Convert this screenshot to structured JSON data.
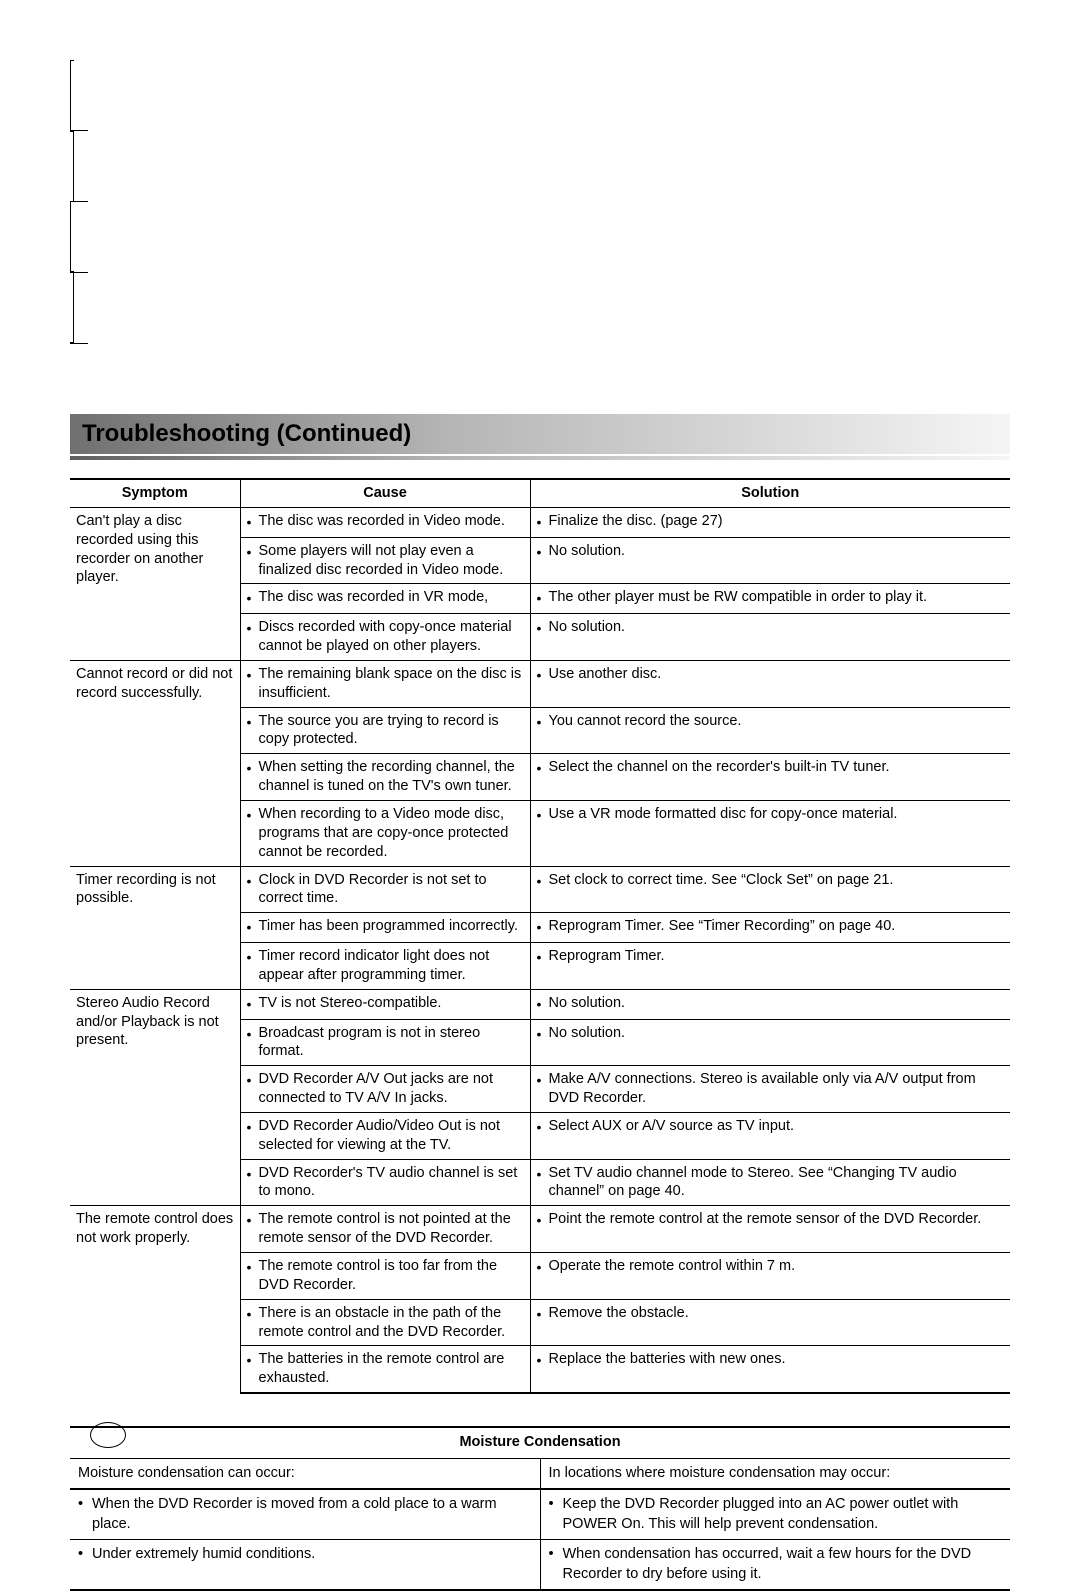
{
  "title": "Troubleshooting (Continued)",
  "headers": {
    "symptom": "Symptom",
    "cause": "Cause",
    "solution": "Solution"
  },
  "groups": [
    {
      "symptom": "Can't play a disc recorded using this recorder on another player.",
      "rows": [
        {
          "cause": "The disc was recorded in Video mode.",
          "solution": "Finalize the disc. (page 27)"
        },
        {
          "cause": "Some players will not play even a finalized disc recorded in Video mode.",
          "solution": "No solution."
        },
        {
          "cause": "The disc was recorded in VR mode,",
          "solution": "The other player must be RW compatible in order to play it."
        },
        {
          "cause": "Discs recorded with copy-once material cannot be played on other players.",
          "solution": "No solution."
        }
      ]
    },
    {
      "symptom": "Cannot record or did not record successfully.",
      "rows": [
        {
          "cause": "The remaining blank space on the disc is insufficient.",
          "solution": "Use another disc."
        },
        {
          "cause": "The source you are trying to record is copy protected.",
          "solution": "You cannot record the source."
        },
        {
          "cause": "When setting the recording channel, the channel is tuned on the TV's own tuner.",
          "solution": "Select the channel on the recorder's built-in TV tuner."
        },
        {
          "cause": "When recording to a Video mode disc, programs that are copy-once protected cannot be recorded.",
          "solution": "Use a VR mode formatted disc for copy-once material."
        }
      ]
    },
    {
      "symptom": "Timer recording is not possible.",
      "rows": [
        {
          "cause": "Clock in DVD Recorder is not set to correct time.",
          "solution": "Set clock to correct time. See “Clock Set” on page 21."
        },
        {
          "cause": "Timer has been programmed incorrectly.",
          "solution": "Reprogram Timer. See “Timer Recording” on page 40."
        },
        {
          "cause": "Timer record indicator light does not appear after programming timer.",
          "solution": "Reprogram Timer."
        }
      ]
    },
    {
      "symptom": "Stereo Audio Record and/or Playback is not present.",
      "rows": [
        {
          "cause": "TV is not Stereo-compatible.",
          "solution": "No solution."
        },
        {
          "cause": "Broadcast program is not in stereo format.",
          "solution": "No solution."
        },
        {
          "cause": "DVD Recorder A/V Out jacks are not connected to TV A/V In jacks.",
          "solution": "Make A/V connections. Stereo is available only via A/V output from DVD Recorder."
        },
        {
          "cause": "DVD Recorder Audio/Video Out is not selected for viewing at the TV.",
          "solution": "Select AUX or A/V source as TV input."
        },
        {
          "cause": "DVD Recorder's TV audio channel is set to mono.",
          "solution": "Set TV audio channel mode to Stereo. See “Changing TV audio channel” on page 40."
        }
      ]
    },
    {
      "symptom": "The remote control does not work properly.",
      "rows": [
        {
          "cause": "The remote control is not pointed at the remote sensor of the DVD Recorder.",
          "solution": "Point the remote control at the remote sensor of the DVD Recorder."
        },
        {
          "cause": "The remote control is too far from the DVD Recorder.",
          "solution": "Operate the remote control within 7 m."
        },
        {
          "cause": "There is an obstacle in the path of the remote control and the DVD Recorder.",
          "solution": "Remove the obstacle."
        },
        {
          "cause": "The batteries in the remote control are exhausted.",
          "solution": "Replace the batteries with new ones."
        }
      ]
    }
  ],
  "moisture": {
    "header": "Moisture Condensation",
    "left_intro": "Moisture condensation can occur:",
    "right_intro": "In locations where moisture condensation may occur:",
    "rows": [
      {
        "left": "When the DVD Recorder is moved from a cold place to a warm place.",
        "right": "Keep the DVD Recorder plugged into an AC power outlet with POWER On. This will help prevent condensation."
      },
      {
        "left": "Under extremely humid conditions.",
        "right": "When condensation has occurred, wait a few hours for the DVD Recorder to dry before using it."
      }
    ]
  }
}
